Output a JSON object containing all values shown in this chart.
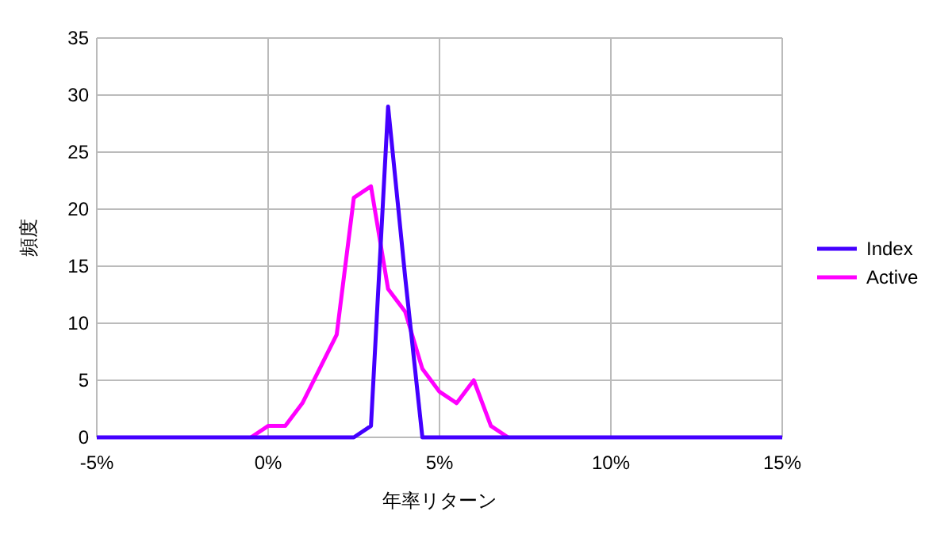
{
  "chart_data": {
    "type": "line",
    "xlabel": "年率リターン",
    "ylabel": "頻度",
    "x": [
      -5,
      -4.5,
      -4,
      -3.5,
      -3,
      -2.5,
      -2,
      -1.5,
      -1,
      -0.5,
      0,
      0.5,
      1,
      1.5,
      2,
      2.5,
      3,
      3.5,
      4,
      4.5,
      5,
      5.5,
      6,
      6.5,
      7,
      7.5,
      8,
      8.5,
      9,
      9.5,
      10,
      10.5,
      11,
      11.5,
      12,
      12.5,
      13,
      13.5,
      14,
      14.5,
      15
    ],
    "series": [
      {
        "name": "Index",
        "color": "#4400ff",
        "values": [
          0,
          0,
          0,
          0,
          0,
          0,
          0,
          0,
          0,
          0,
          0,
          0,
          0,
          0,
          0,
          0,
          1,
          29,
          14,
          0,
          0,
          0,
          0,
          0,
          0,
          0,
          0,
          0,
          0,
          0,
          0,
          0,
          0,
          0,
          0,
          0,
          0,
          0,
          0,
          0,
          0
        ]
      },
      {
        "name": "Active",
        "color": "#ff00ff",
        "values": [
          null,
          null,
          null,
          null,
          null,
          null,
          null,
          null,
          null,
          0,
          1,
          1,
          3,
          6,
          9,
          21,
          22,
          13,
          11,
          6,
          4,
          3,
          5,
          1,
          0,
          null,
          null,
          null,
          null,
          null,
          null,
          null,
          null,
          null,
          null,
          null,
          null,
          null,
          null,
          null,
          null
        ]
      }
    ],
    "xlim": [
      -5,
      15
    ],
    "xticks": [
      {
        "value": -5,
        "label": "-5%"
      },
      {
        "value": 0,
        "label": "0%"
      },
      {
        "value": 5,
        "label": "5%"
      },
      {
        "value": 10,
        "label": "10%"
      },
      {
        "value": 15,
        "label": "15%"
      }
    ],
    "ylim": [
      0,
      35
    ],
    "yticks": [
      0,
      5,
      10,
      15,
      20,
      25,
      30,
      35
    ],
    "grid": true,
    "legend": "right"
  }
}
